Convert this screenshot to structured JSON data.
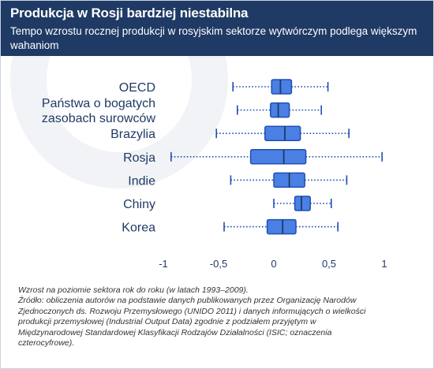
{
  "header": {
    "title": "Produkcja w Rosji bardziej niestabilna",
    "subtitle": "Tempo wzrostu rocznej produkcji w rosyjskim sektorze wytwórczym podlega większym wahaniom"
  },
  "chart_data": {
    "type": "boxplot",
    "orientation": "horizontal",
    "categories": [
      {
        "lines": [
          "OECD"
        ]
      },
      {
        "lines": [
          "Państwa o bogatych",
          "zasobach surowców"
        ]
      },
      {
        "lines": [
          "Brazylia"
        ]
      },
      {
        "lines": [
          "Rosja"
        ]
      },
      {
        "lines": [
          "Indie"
        ]
      },
      {
        "lines": [
          "Chiny"
        ]
      },
      {
        "lines": [
          "Korea"
        ]
      }
    ],
    "series": [
      {
        "category": "OECD",
        "min": -0.37,
        "q1": -0.02,
        "median": 0.06,
        "q3": 0.16,
        "max": 0.49
      },
      {
        "category": "Państwa o bogatych zasobach surowców",
        "min": -0.33,
        "q1": -0.03,
        "median": 0.04,
        "q3": 0.14,
        "max": 0.43
      },
      {
        "category": "Brazylia",
        "min": -0.52,
        "q1": -0.08,
        "median": 0.1,
        "q3": 0.24,
        "max": 0.68
      },
      {
        "category": "Rosja",
        "min": -0.93,
        "q1": -0.21,
        "median": 0.09,
        "q3": 0.29,
        "max": 0.98
      },
      {
        "category": "Indie",
        "min": -0.39,
        "q1": 0.0,
        "median": 0.14,
        "q3": 0.28,
        "max": 0.66
      },
      {
        "category": "Chiny",
        "min": 0.0,
        "q1": 0.19,
        "median": 0.25,
        "q3": 0.33,
        "max": 0.52
      },
      {
        "category": "Korea",
        "min": -0.45,
        "q1": -0.06,
        "median": 0.08,
        "q3": 0.2,
        "max": 0.58
      }
    ],
    "xlim": [
      -1,
      1
    ],
    "xticks": [
      -1,
      -0.5,
      0,
      0.5,
      1
    ],
    "xtick_labels": [
      "-1",
      "-0,5",
      "0",
      "0,5",
      "1"
    ],
    "grid": false,
    "colors": {
      "box_fill": "#4a7fe3",
      "box_stroke": "#1f4fb5",
      "whisker": "#1f4fb5",
      "median": "#1f3a64",
      "text": "#1f3a64",
      "header": "#1f3a64"
    }
  },
  "footer": {
    "lines": [
      "Wzrost na poziomie sektora rok do roku (w latach 1993–2009).",
      "Źródło: obliczenia autorów na podstawie danych publikowanych przez Organizację Narodów",
      "Zjednoczonych ds. Rozwoju Przemysłowego (UNIDO 2011) i danych informujących o wielkości",
      "produkcji przemysłowej (Industrial Output Data) zgodnie z podziałem przyjętym w",
      "Międzynarodowej Standardowej Klasyfikacji Rodzajów Działalności (ISIC; oznaczenia",
      "czterocyfrowe)."
    ]
  }
}
